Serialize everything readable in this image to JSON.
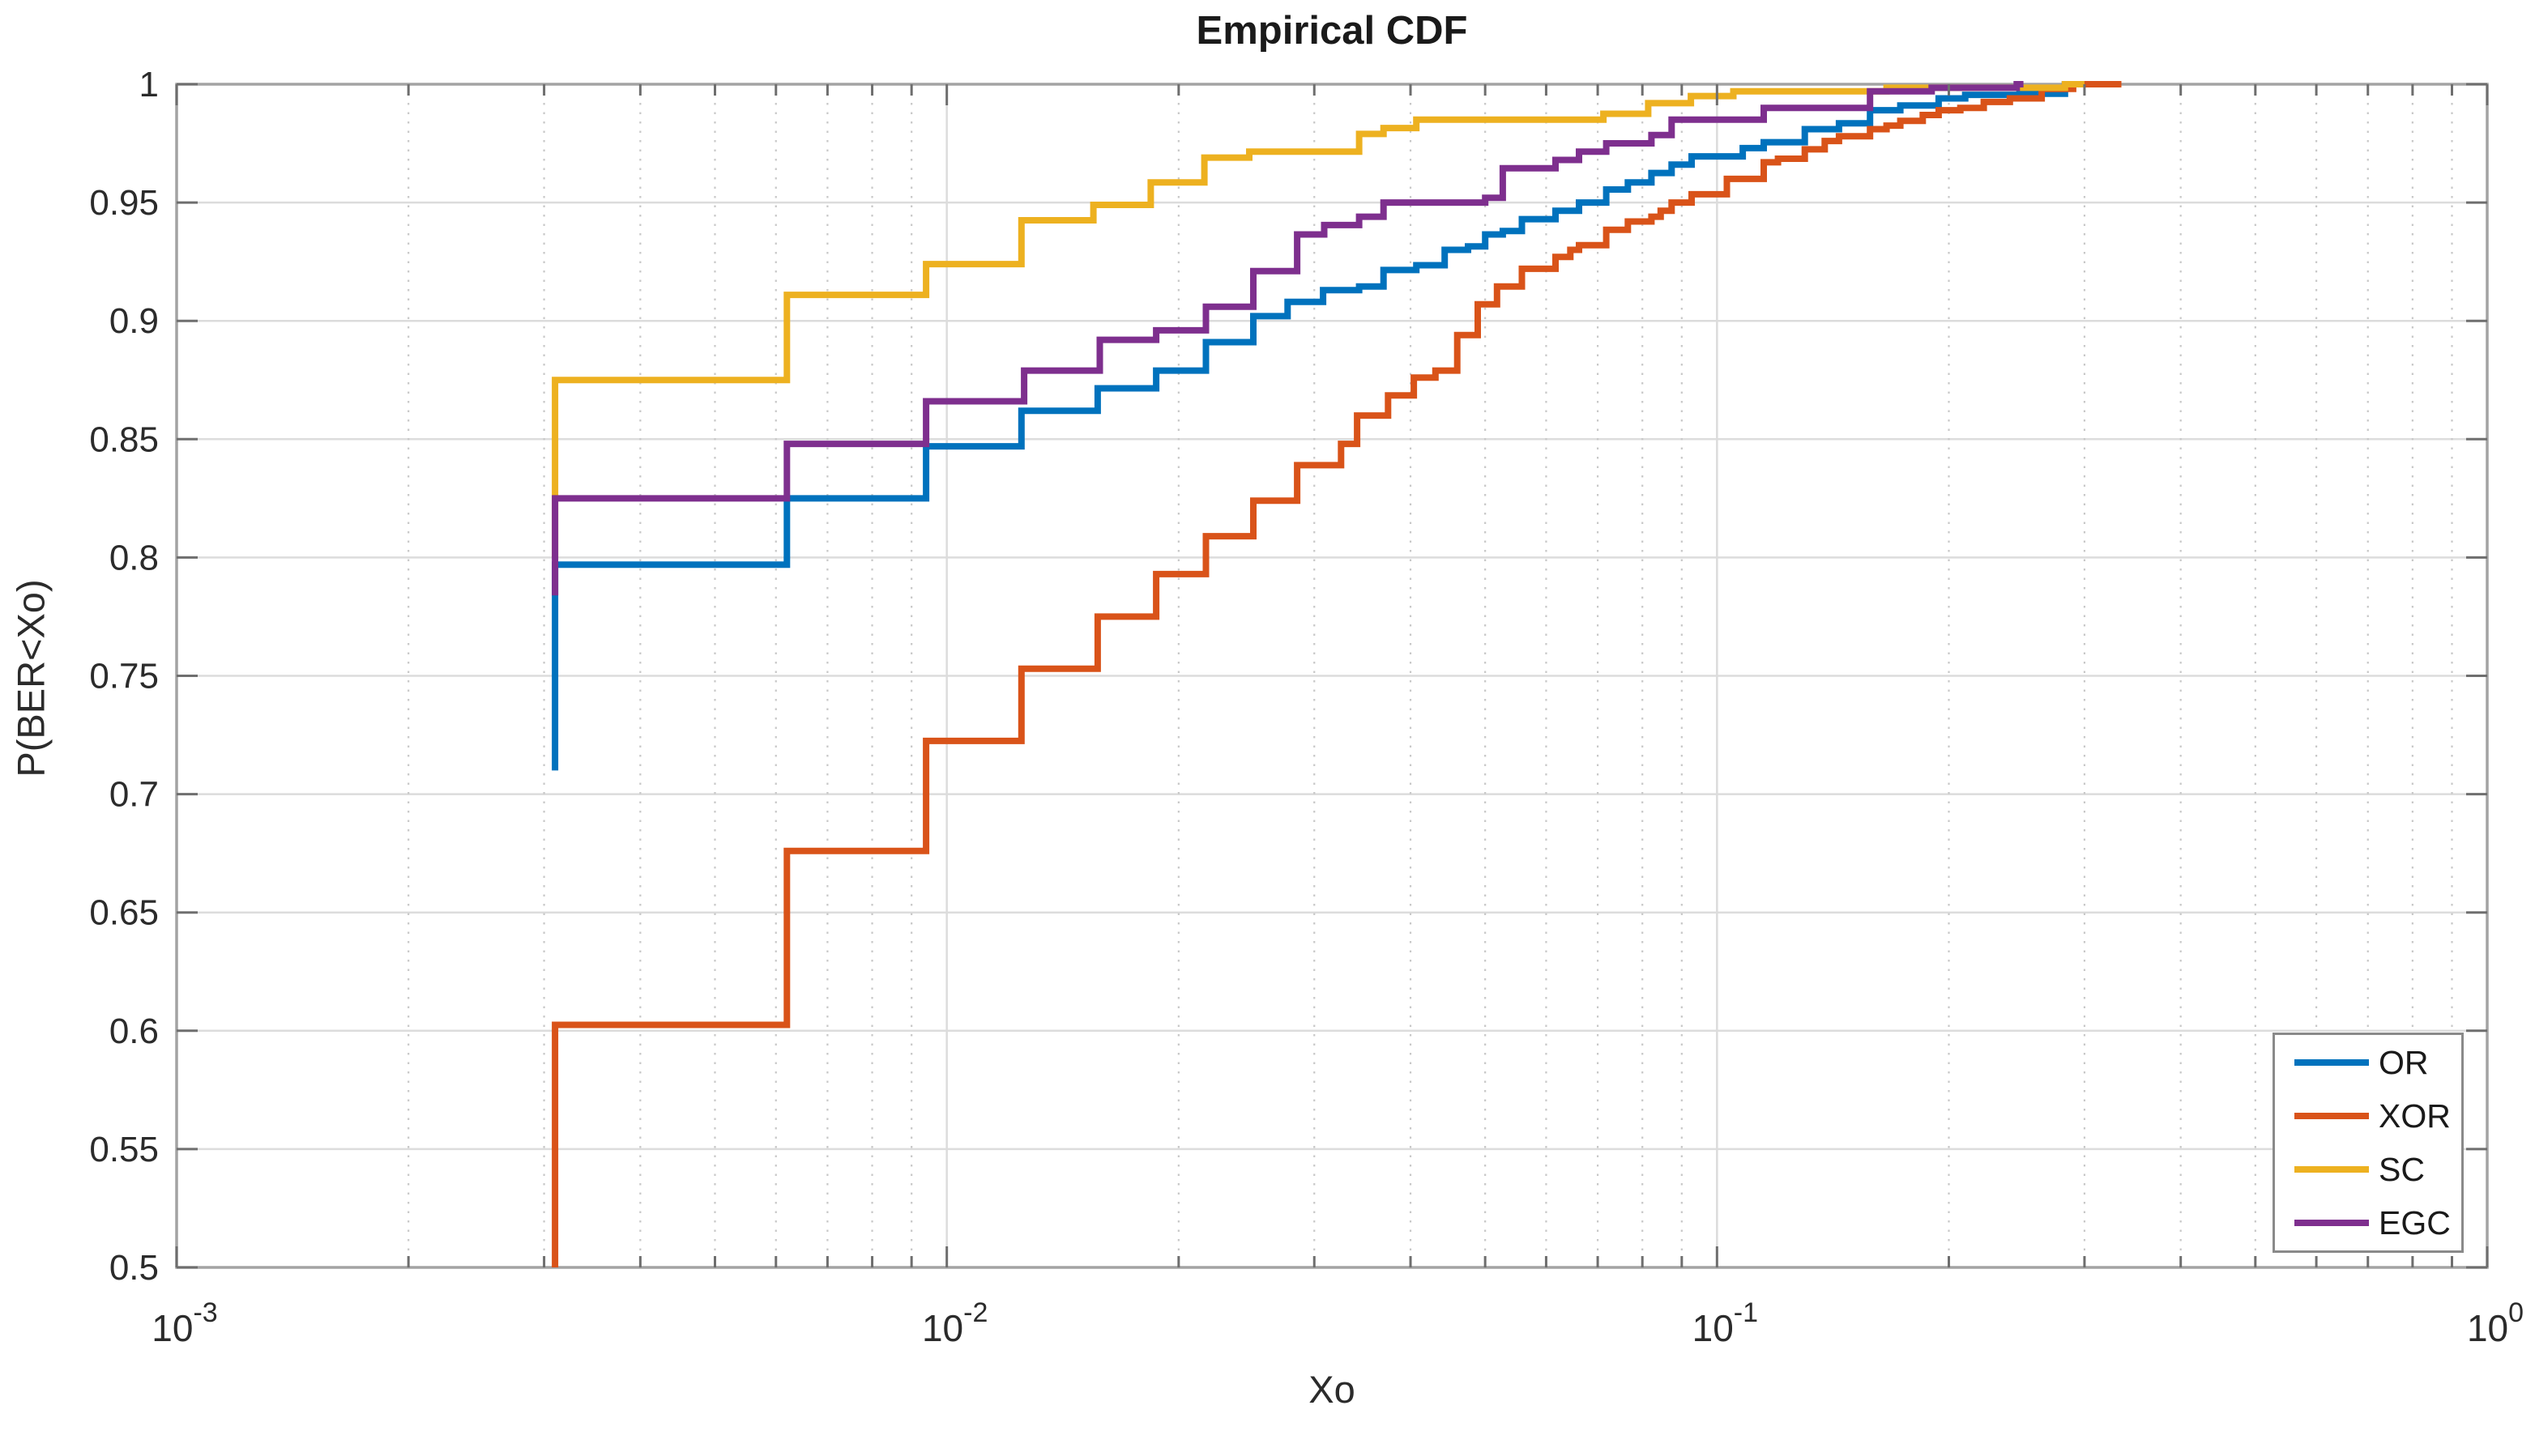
{
  "title": "Empirical CDF",
  "axes": {
    "xlabel": "Xo",
    "ylabel": "P(BER<Xo)",
    "x_scale": "log",
    "xlim": [
      0.001,
      1
    ],
    "ylim": [
      0.5,
      1
    ],
    "x_ticks": [
      {
        "value": 0.001,
        "base": "10",
        "exp": "-3"
      },
      {
        "value": 0.01,
        "base": "10",
        "exp": "-2"
      },
      {
        "value": 0.1,
        "base": "10",
        "exp": "-1"
      },
      {
        "value": 1,
        "base": "10",
        "exp": "0"
      }
    ],
    "y_ticks": [
      {
        "value": 1,
        "label": "1"
      },
      {
        "value": 0.95,
        "label": "0.95"
      },
      {
        "value": 0.9,
        "label": "0.9"
      },
      {
        "value": 0.85,
        "label": "0.85"
      },
      {
        "value": 0.8,
        "label": "0.8"
      },
      {
        "value": 0.75,
        "label": "0.75"
      },
      {
        "value": 0.7,
        "label": "0.7"
      },
      {
        "value": 0.65,
        "label": "0.65"
      },
      {
        "value": 0.6,
        "label": "0.6"
      },
      {
        "value": 0.55,
        "label": "0.55"
      },
      {
        "value": 0.5,
        "label": "0.5"
      }
    ],
    "grid": true
  },
  "legend": {
    "position": "southeast",
    "items": [
      {
        "label": "OR",
        "color": "#0072BD"
      },
      {
        "label": "XOR",
        "color": "#D95319"
      },
      {
        "label": "SC",
        "color": "#EDB120"
      },
      {
        "label": "EGC",
        "color": "#7E2F8E"
      }
    ]
  },
  "style_colors": {
    "axis_border": "#a3a3a3",
    "tick": "#6e6e6e",
    "tick_label": "#2b2b2b",
    "grid_major": "#dcdcdc",
    "grid_minor": "#c8c8c8"
  },
  "chart_data": {
    "type": "line",
    "subtype": "empirical-cdf-stairs",
    "title": "Empirical CDF",
    "xlabel": "Xo",
    "ylabel": "P(BER<Xo)",
    "xscale": "log",
    "xlim": [
      0.001,
      1
    ],
    "ylim": [
      0.5,
      1
    ],
    "grid": true,
    "legend_position": "southeast",
    "series": [
      {
        "name": "OR",
        "color": "#0072BD",
        "start_p": 0.71,
        "end_x": 0.305,
        "steps": [
          [
            0.0031,
            0.797
          ],
          [
            0.0062,
            0.825
          ],
          [
            0.0094,
            0.847
          ],
          [
            0.0125,
            0.862
          ],
          [
            0.0157,
            0.8715
          ],
          [
            0.0187,
            0.879
          ],
          [
            0.0217,
            0.891
          ],
          [
            0.025,
            0.902
          ],
          [
            0.0277,
            0.908
          ],
          [
            0.0308,
            0.913
          ],
          [
            0.0343,
            0.9145
          ],
          [
            0.0369,
            0.9215
          ],
          [
            0.0407,
            0.9235
          ],
          [
            0.0443,
            0.93
          ],
          [
            0.0475,
            0.9315
          ],
          [
            0.05,
            0.9365
          ],
          [
            0.0527,
            0.938
          ],
          [
            0.0558,
            0.943
          ],
          [
            0.0617,
            0.9465
          ],
          [
            0.0662,
            0.95
          ],
          [
            0.0718,
            0.9555
          ],
          [
            0.0766,
            0.9585
          ],
          [
            0.0822,
            0.9625
          ],
          [
            0.0873,
            0.966
          ],
          [
            0.0927,
            0.9695
          ],
          [
            0.108,
            0.973
          ],
          [
            0.115,
            0.9755
          ],
          [
            0.13,
            0.981
          ],
          [
            0.144,
            0.9835
          ],
          [
            0.158,
            0.989
          ],
          [
            0.173,
            0.991
          ],
          [
            0.194,
            0.994
          ],
          [
            0.21,
            0.9955
          ],
          [
            0.247,
            0.996
          ],
          [
            0.283,
            1.0
          ]
        ]
      },
      {
        "name": "XOR",
        "color": "#D95319",
        "start_p": 0.5,
        "end_x": 0.335,
        "steps": [
          [
            0.0031,
            0.6025
          ],
          [
            0.0062,
            0.676
          ],
          [
            0.0094,
            0.7225
          ],
          [
            0.0125,
            0.753
          ],
          [
            0.0157,
            0.775
          ],
          [
            0.0187,
            0.793
          ],
          [
            0.0217,
            0.809
          ],
          [
            0.025,
            0.824
          ],
          [
            0.0285,
            0.839
          ],
          [
            0.0325,
            0.848
          ],
          [
            0.0341,
            0.86
          ],
          [
            0.0374,
            0.8685
          ],
          [
            0.0404,
            0.876
          ],
          [
            0.0431,
            0.879
          ],
          [
            0.046,
            0.894
          ],
          [
            0.0489,
            0.907
          ],
          [
            0.0518,
            0.9145
          ],
          [
            0.0558,
            0.922
          ],
          [
            0.0617,
            0.927
          ],
          [
            0.0645,
            0.93
          ],
          [
            0.0662,
            0.932
          ],
          [
            0.0718,
            0.9385
          ],
          [
            0.0766,
            0.942
          ],
          [
            0.0822,
            0.944
          ],
          [
            0.0845,
            0.9465
          ],
          [
            0.0873,
            0.95
          ],
          [
            0.0927,
            0.9535
          ],
          [
            0.103,
            0.96
          ],
          [
            0.115,
            0.967
          ],
          [
            0.12,
            0.9685
          ],
          [
            0.13,
            0.9725
          ],
          [
            0.138,
            0.976
          ],
          [
            0.144,
            0.978
          ],
          [
            0.158,
            0.981
          ],
          [
            0.166,
            0.9825
          ],
          [
            0.173,
            0.9845
          ],
          [
            0.185,
            0.987
          ],
          [
            0.194,
            0.989
          ],
          [
            0.207,
            0.99
          ],
          [
            0.222,
            0.9925
          ],
          [
            0.24,
            0.994
          ],
          [
            0.264,
            0.998
          ],
          [
            0.29,
            1.0
          ]
        ]
      },
      {
        "name": "SC",
        "color": "#EDB120",
        "start_p": 0.8,
        "end_x": 0.3,
        "steps": [
          [
            0.0031,
            0.875
          ],
          [
            0.0062,
            0.911
          ],
          [
            0.0094,
            0.924
          ],
          [
            0.0125,
            0.9425
          ],
          [
            0.0155,
            0.949
          ],
          [
            0.0184,
            0.9585
          ],
          [
            0.0216,
            0.969
          ],
          [
            0.0247,
            0.9715
          ],
          [
            0.0343,
            0.979
          ],
          [
            0.0369,
            0.9815
          ],
          [
            0.0407,
            0.985
          ],
          [
            0.0712,
            0.9875
          ],
          [
            0.0814,
            0.992
          ],
          [
            0.0925,
            0.995
          ],
          [
            0.105,
            0.997
          ],
          [
            0.166,
            0.9985
          ],
          [
            0.283,
            1.0
          ]
        ]
      },
      {
        "name": "EGC",
        "color": "#7E2F8E",
        "start_p": 0.784,
        "end_x": 0.25,
        "steps": [
          [
            0.0031,
            0.825
          ],
          [
            0.0062,
            0.848
          ],
          [
            0.0094,
            0.866
          ],
          [
            0.0126,
            0.879
          ],
          [
            0.0158,
            0.892
          ],
          [
            0.0187,
            0.896
          ],
          [
            0.0217,
            0.906
          ],
          [
            0.025,
            0.921
          ],
          [
            0.0285,
            0.9365
          ],
          [
            0.0309,
            0.9405
          ],
          [
            0.0343,
            0.944
          ],
          [
            0.0369,
            0.95
          ],
          [
            0.05,
            0.952
          ],
          [
            0.0527,
            0.9645
          ],
          [
            0.0617,
            0.968
          ],
          [
            0.0662,
            0.9715
          ],
          [
            0.0718,
            0.975
          ],
          [
            0.0822,
            0.9785
          ],
          [
            0.0873,
            0.985
          ],
          [
            0.115,
            0.99
          ],
          [
            0.158,
            0.997
          ],
          [
            0.19,
            0.9985
          ],
          [
            0.245,
            1.0
          ]
        ]
      }
    ]
  }
}
